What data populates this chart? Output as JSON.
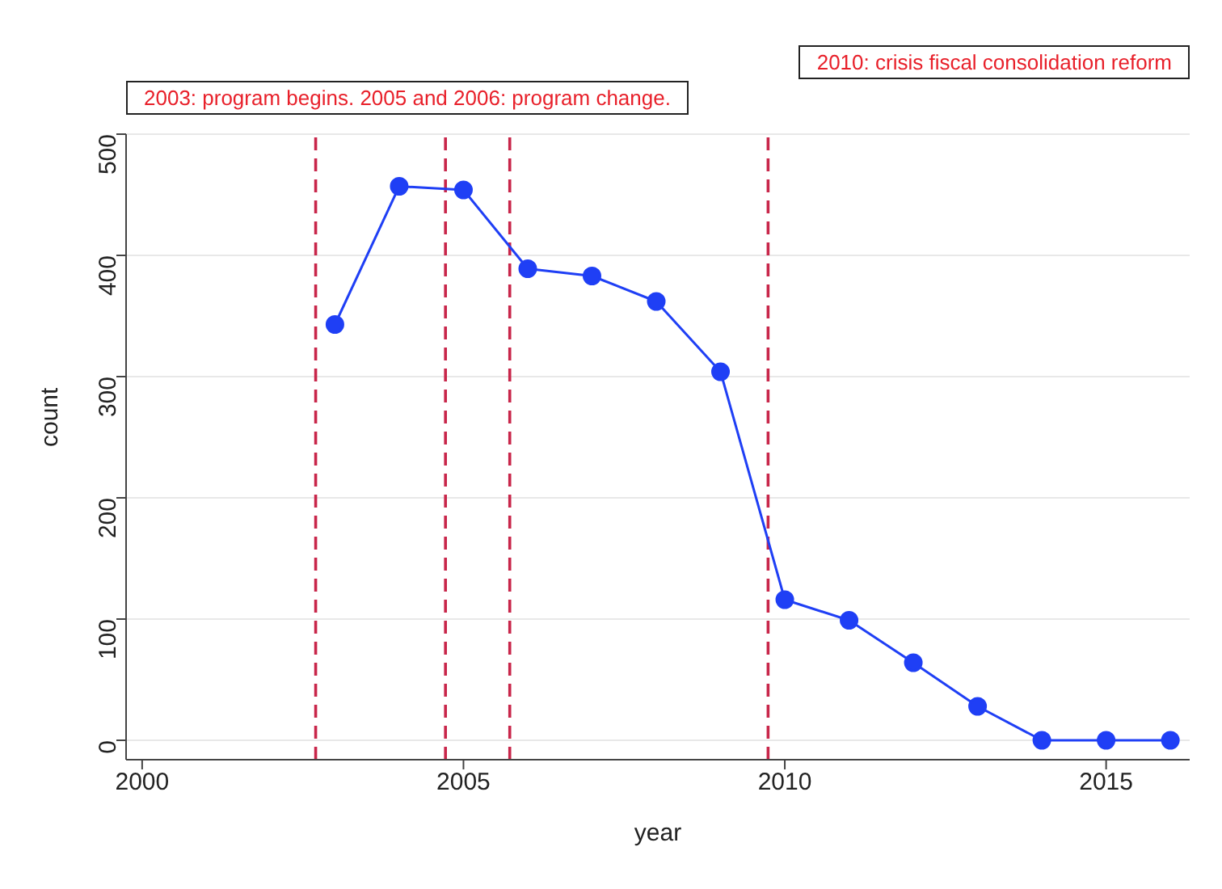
{
  "chart_data": {
    "type": "line",
    "xlabel": "year",
    "ylabel": "count",
    "x": [
      2003,
      2004,
      2005,
      2006,
      2007,
      2008,
      2009,
      2010,
      2011,
      2012,
      2013,
      2014,
      2015,
      2016
    ],
    "series": [
      {
        "color": "#1f3ff5",
        "values": [
          343,
          457,
          454,
          389,
          383,
          362,
          304,
          116,
          99,
          64,
          28,
          0,
          0,
          0
        ]
      }
    ],
    "xlim": [
      1999.75,
      2016.3
    ],
    "xticks": [
      2000,
      2005,
      2010,
      2015
    ],
    "ylim": [
      -16,
      500
    ],
    "yticks": [
      0,
      100,
      200,
      300,
      400,
      500
    ],
    "grid": "y",
    "marker": "circle",
    "line_style": "solid",
    "ref_lines": [
      {
        "axis": "x",
        "value": 2002.7,
        "color": "#c8264a",
        "line_style": "dashed"
      },
      {
        "axis": "x",
        "value": 2004.72,
        "color": "#c8264a",
        "line_style": "dashed"
      },
      {
        "axis": "x",
        "value": 2005.72,
        "color": "#c8264a",
        "line_style": "dashed"
      },
      {
        "axis": "x",
        "value": 2009.74,
        "color": "#c8264a",
        "line_style": "dashed"
      }
    ],
    "annotations": [
      "2003: program begins. 2005 and 2006: program change.",
      "2010: crisis fiscal consolidation reform"
    ]
  }
}
